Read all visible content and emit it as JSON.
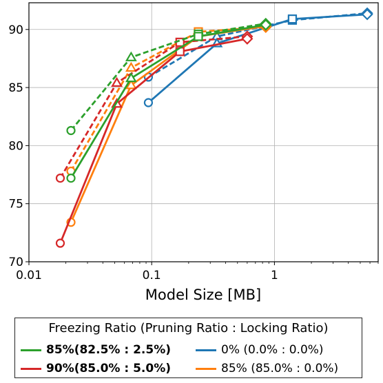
{
  "chart_data": {
    "type": "line",
    "xlabel": "Model Size [MB]",
    "ylabel": "",
    "xscale": "log",
    "xlim": [
      0.01,
      7
    ],
    "ylim": [
      70,
      92.3
    ],
    "xticks": [
      0.01,
      0.1,
      1
    ],
    "xtick_labels": [
      "0.01",
      "0.1",
      "1"
    ],
    "yticks": [
      70,
      75,
      80,
      85,
      90
    ],
    "ytick_labels": [
      "70",
      "75",
      "80",
      "85",
      "90"
    ],
    "grid": true,
    "legend": {
      "title": "Freezing Ratio (Pruning Ratio : Locking Ratio)",
      "placement": "below",
      "entries": [
        {
          "label": "85%(82.5% : 2.5%)",
          "color": "#2ca02c",
          "bold": true
        },
        {
          "label": "0% (0.0% : 0.0%)",
          "color": "#1f77b4",
          "bold": false
        },
        {
          "label": "90%(85.0% : 5.0%)",
          "color": "#d62728",
          "bold": true
        },
        {
          "label": "85% (85.0% : 0.0%)",
          "color": "#ff7f0e",
          "bold": false
        }
      ]
    },
    "series": [
      {
        "color": "#1f77b4",
        "style": "dashed",
        "points": [
          [
            0.094,
            85.9,
            "o"
          ],
          [
            0.34,
            89.4,
            "^"
          ],
          [
            1.4,
            90.8,
            "s"
          ],
          [
            5.7,
            91.4,
            "D"
          ]
        ]
      },
      {
        "color": "#1f77b4",
        "style": "solid",
        "points": [
          [
            0.094,
            83.7,
            "o"
          ],
          [
            0.34,
            88.8,
            "^"
          ],
          [
            1.4,
            90.9,
            "s"
          ],
          [
            5.7,
            91.3,
            "D"
          ]
        ]
      },
      {
        "color": "#ff7f0e",
        "style": "dashed",
        "points": [
          [
            0.022,
            77.8,
            "o"
          ],
          [
            0.068,
            86.7,
            "^"
          ],
          [
            0.24,
            89.8,
            "s"
          ],
          [
            0.85,
            90.2,
            "D"
          ]
        ]
      },
      {
        "color": "#ff7f0e",
        "style": "solid",
        "points": [
          [
            0.022,
            73.4,
            "o"
          ],
          [
            0.068,
            85.2,
            "^"
          ],
          [
            0.24,
            89.4,
            "s"
          ],
          [
            0.85,
            90.3,
            "D"
          ]
        ]
      },
      {
        "color": "#d62728",
        "style": "dashed",
        "points": [
          [
            0.018,
            77.2,
            "o"
          ],
          [
            0.052,
            85.4,
            "^"
          ],
          [
            0.17,
            88.9,
            "s"
          ],
          [
            0.6,
            89.4,
            "D"
          ]
        ]
      },
      {
        "color": "#d62728",
        "style": "solid",
        "points": [
          [
            0.018,
            71.6,
            "o"
          ],
          [
            0.052,
            83.6,
            "^"
          ],
          [
            0.17,
            88.1,
            "s"
          ],
          [
            0.6,
            89.2,
            "D"
          ]
        ]
      },
      {
        "color": "#2ca02c",
        "style": "dashed",
        "points": [
          [
            0.022,
            81.3,
            "o"
          ],
          [
            0.068,
            87.6,
            "^"
          ],
          [
            0.24,
            89.6,
            "s"
          ],
          [
            0.85,
            90.5,
            "D"
          ]
        ]
      },
      {
        "color": "#2ca02c",
        "style": "solid",
        "points": [
          [
            0.022,
            77.2,
            "o"
          ],
          [
            0.068,
            85.8,
            "^"
          ],
          [
            0.24,
            89.4,
            "s"
          ],
          [
            0.85,
            90.4,
            "D"
          ]
        ]
      }
    ]
  }
}
